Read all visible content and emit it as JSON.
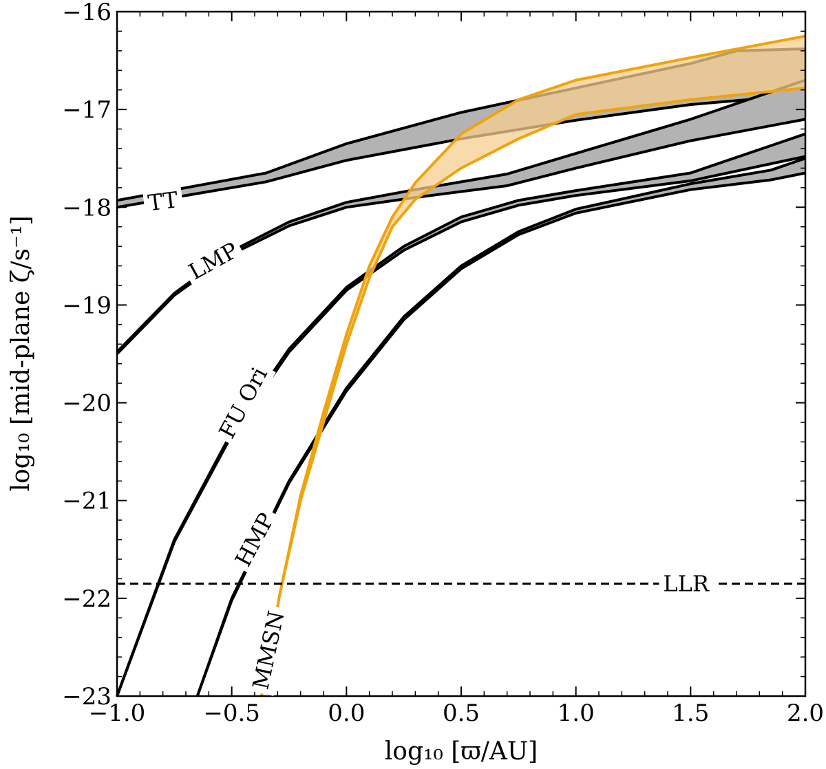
{
  "chart_data": {
    "type": "line",
    "xlabel": "log₁₀ [ϖ/AU]",
    "ylabel": "log₁₀ [mid-plane ζ/s⁻¹]",
    "xlim": [
      -1.0,
      2.0
    ],
    "ylim": [
      -23,
      -16
    ],
    "x_ticks": [
      -1.0,
      -0.5,
      0.0,
      0.5,
      1.0,
      1.5,
      2.0
    ],
    "x_tick_labels": [
      "−1.0",
      "−0.5",
      "0.0",
      "0.5",
      "1.0",
      "1.5",
      "2.0"
    ],
    "y_ticks": [
      -23,
      -22,
      -21,
      -20,
      -19,
      -18,
      -17,
      -16
    ],
    "y_tick_labels": [
      "−23",
      "−22",
      "−21",
      "−20",
      "−19",
      "−18",
      "−17",
      "−16"
    ],
    "series": [
      {
        "name": "TT",
        "kind": "band",
        "fill": "#b3b3b3",
        "stroke": "#000000",
        "upper": [
          [
            -1.0,
            -17.93
          ],
          [
            -0.35,
            -17.65
          ],
          [
            0.0,
            -17.35
          ],
          [
            0.5,
            -17.03
          ],
          [
            1.0,
            -16.78
          ],
          [
            1.5,
            -16.53
          ],
          [
            1.7,
            -16.4
          ],
          [
            2.0,
            -16.38
          ]
        ],
        "lower": [
          [
            -1.0,
            -18.0
          ],
          [
            -0.35,
            -17.74
          ],
          [
            0.0,
            -17.52
          ],
          [
            0.5,
            -17.3
          ],
          [
            1.0,
            -17.11
          ],
          [
            1.5,
            -16.95
          ],
          [
            2.0,
            -16.85
          ]
        ]
      },
      {
        "name": "LMP",
        "kind": "band",
        "fill": "#b3b3b3",
        "stroke": "#000000",
        "upper": [
          [
            -1.0,
            -19.48
          ],
          [
            -0.75,
            -18.88
          ],
          [
            -0.5,
            -18.45
          ],
          [
            -0.25,
            -18.15
          ],
          [
            0.0,
            -17.95
          ],
          [
            0.3,
            -17.82
          ],
          [
            0.7,
            -17.66
          ],
          [
            1.0,
            -17.45
          ],
          [
            1.5,
            -17.1
          ],
          [
            2.0,
            -16.7
          ]
        ],
        "lower": [
          [
            -1.0,
            -19.5
          ],
          [
            -0.75,
            -18.9
          ],
          [
            -0.5,
            -18.48
          ],
          [
            -0.25,
            -18.19
          ],
          [
            0.0,
            -18.0
          ],
          [
            0.3,
            -17.9
          ],
          [
            0.7,
            -17.78
          ],
          [
            1.0,
            -17.6
          ],
          [
            1.5,
            -17.32
          ],
          [
            2.0,
            -17.1
          ]
        ]
      },
      {
        "name": "FU Ori",
        "kind": "band",
        "fill": "#b3b3b3",
        "stroke": "#000000",
        "upper": [
          [
            -1.0,
            -23.0
          ],
          [
            -0.75,
            -21.4
          ],
          [
            -0.5,
            -20.3
          ],
          [
            -0.25,
            -19.45
          ],
          [
            0.0,
            -18.82
          ],
          [
            0.25,
            -18.4
          ],
          [
            0.5,
            -18.1
          ],
          [
            0.75,
            -17.93
          ],
          [
            1.0,
            -17.83
          ],
          [
            1.5,
            -17.65
          ],
          [
            2.0,
            -17.25
          ]
        ],
        "lower": [
          [
            -1.0,
            -23.0
          ],
          [
            -0.75,
            -21.42
          ],
          [
            -0.5,
            -20.33
          ],
          [
            -0.25,
            -19.48
          ],
          [
            0.0,
            -18.85
          ],
          [
            0.25,
            -18.44
          ],
          [
            0.5,
            -18.15
          ],
          [
            0.75,
            -17.98
          ],
          [
            1.0,
            -17.88
          ],
          [
            1.5,
            -17.73
          ],
          [
            2.0,
            -17.48
          ]
        ]
      },
      {
        "name": "HMP",
        "kind": "band",
        "fill": "#b3b3b3",
        "stroke": "#000000",
        "upper": [
          [
            -0.65,
            -23.0
          ],
          [
            -0.5,
            -22.0
          ],
          [
            -0.25,
            -20.8
          ],
          [
            0.0,
            -19.85
          ],
          [
            0.25,
            -19.12
          ],
          [
            0.5,
            -18.6
          ],
          [
            0.75,
            -18.25
          ],
          [
            1.0,
            -18.02
          ],
          [
            1.5,
            -17.76
          ],
          [
            1.85,
            -17.62
          ],
          [
            2.0,
            -17.5
          ]
        ],
        "lower": [
          [
            -0.65,
            -23.0
          ],
          [
            -0.5,
            -22.02
          ],
          [
            -0.25,
            -20.82
          ],
          [
            0.0,
            -19.88
          ],
          [
            0.25,
            -19.15
          ],
          [
            0.5,
            -18.63
          ],
          [
            0.75,
            -18.28
          ],
          [
            1.0,
            -18.06
          ],
          [
            1.5,
            -17.82
          ],
          [
            1.85,
            -17.72
          ],
          [
            2.0,
            -17.65
          ]
        ]
      },
      {
        "name": "MMSN",
        "kind": "band",
        "fill": "#f7cf8f",
        "fill_opacity": 0.75,
        "stroke": "#f0a30a",
        "upper": [
          [
            -0.29,
            -21.95
          ],
          [
            -0.2,
            -20.95
          ],
          [
            -0.1,
            -20.1
          ],
          [
            0.0,
            -19.3
          ],
          [
            0.1,
            -18.6
          ],
          [
            0.2,
            -18.1
          ],
          [
            0.3,
            -17.75
          ],
          [
            0.5,
            -17.25
          ],
          [
            0.75,
            -16.9
          ],
          [
            1.0,
            -16.7
          ],
          [
            1.5,
            -16.47
          ],
          [
            2.0,
            -16.25
          ]
        ],
        "lower": [
          [
            -0.29,
            -21.95
          ],
          [
            -0.2,
            -21.0
          ],
          [
            -0.1,
            -20.2
          ],
          [
            0.0,
            -19.4
          ],
          [
            0.1,
            -18.72
          ],
          [
            0.2,
            -18.2
          ],
          [
            0.3,
            -17.92
          ],
          [
            0.5,
            -17.6
          ],
          [
            0.75,
            -17.3
          ],
          [
            1.0,
            -17.05
          ],
          [
            1.5,
            -16.9
          ],
          [
            2.0,
            -16.78
          ]
        ],
        "tail": [
          [
            -0.29,
            -21.95
          ],
          [
            -0.37,
            -23.0
          ]
        ]
      },
      {
        "name": "LLR",
        "kind": "hline",
        "y": -21.85,
        "stroke": "#000000",
        "dashed": true
      }
    ],
    "annotations": [
      {
        "id": "TT",
        "text": "TT",
        "x": -0.8,
        "y": -17.94,
        "rotation": -7,
        "color": "#000000"
      },
      {
        "id": "LMP",
        "text": "LMP",
        "x": -0.58,
        "y": -18.55,
        "rotation": -29,
        "color": "#000000"
      },
      {
        "id": "FU",
        "text": "FU Ori",
        "x": -0.45,
        "y": -20.0,
        "rotation": -62,
        "color": "#000000"
      },
      {
        "id": "HMP",
        "text": "HMP",
        "x": -0.4,
        "y": -21.4,
        "rotation": -62,
        "color": "#000000"
      },
      {
        "id": "LLR",
        "text": "LLR",
        "x": 1.48,
        "y": -21.85,
        "rotation": 0,
        "color": "#000000"
      },
      {
        "id": "MMSN",
        "text": "MMSN",
        "x": -0.34,
        "y": -22.53,
        "rotation": -78,
        "color": "#f0a30a"
      }
    ]
  }
}
